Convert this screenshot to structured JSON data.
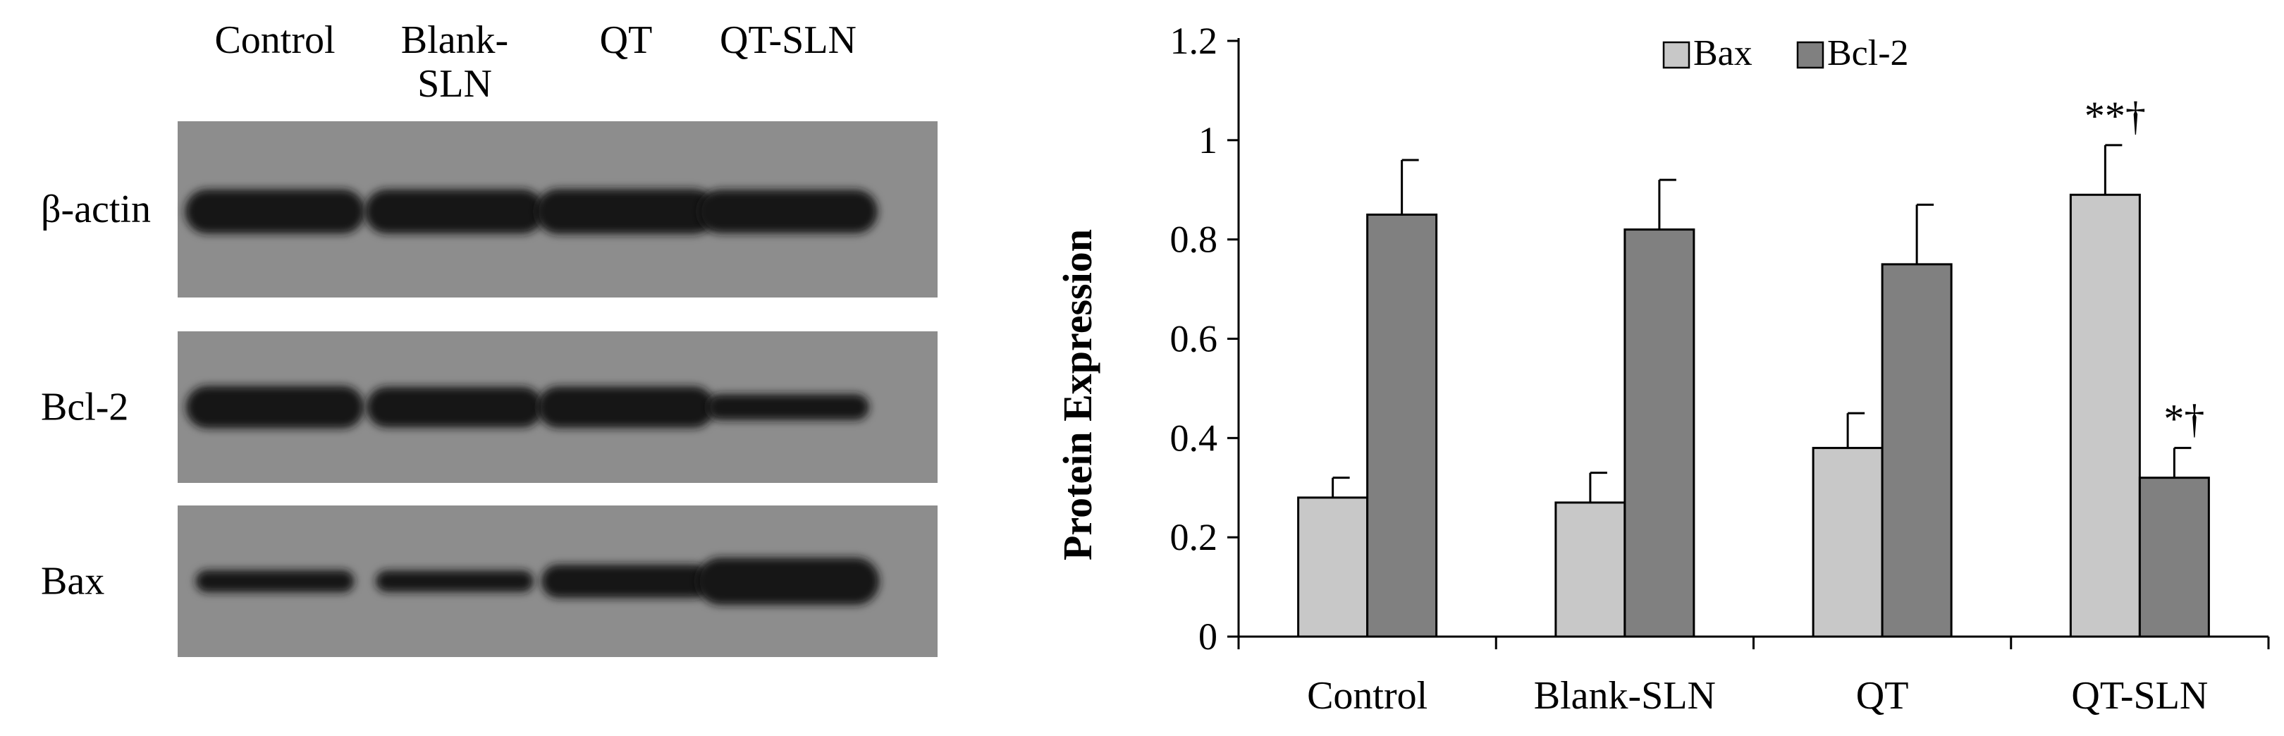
{
  "blot": {
    "lane_labels": [
      "Control",
      "Blank-",
      "QT",
      "QT-SLN"
    ],
    "lane_label_line2": "SLN",
    "rows": [
      {
        "label": "β-actin",
        "bands": [
          0.9,
          0.9,
          0.92,
          0.88
        ]
      },
      {
        "label": "Bcl-2",
        "bands": [
          0.85,
          0.8,
          0.82,
          0.4
        ]
      },
      {
        "label": "Bax",
        "bands": [
          0.3,
          0.28,
          0.6,
          0.98
        ]
      }
    ],
    "colors": {
      "membrane": "#8d8d8d",
      "band": "#141414"
    }
  },
  "chart_data": {
    "type": "bar",
    "categories": [
      "Control",
      "Blank-SLN",
      "QT",
      "QT-SLN"
    ],
    "series": [
      {
        "name": "Bax",
        "values": [
          0.28,
          0.27,
          0.38,
          0.89
        ],
        "errors": [
          0.04,
          0.06,
          0.07,
          0.1
        ],
        "color": "#c8c8c8"
      },
      {
        "name": "Bcl-2",
        "values": [
          0.85,
          0.82,
          0.75,
          0.32
        ],
        "errors": [
          0.11,
          0.1,
          0.12,
          0.06
        ],
        "color": "#808080"
      }
    ],
    "annotations": [
      {
        "category": "QT-SLN",
        "series": "Bax",
        "text": "**†"
      },
      {
        "category": "QT-SLN",
        "series": "Bcl-2",
        "text": "*†"
      }
    ],
    "ylabel": "Protein Expression",
    "xlabel": "",
    "ylim": [
      0,
      1.2
    ],
    "yticks": [
      "0",
      "0.2",
      "0.4",
      "0.6",
      "0.8",
      "1",
      "1.2"
    ],
    "legend_position": "top-center",
    "grid": false
  }
}
